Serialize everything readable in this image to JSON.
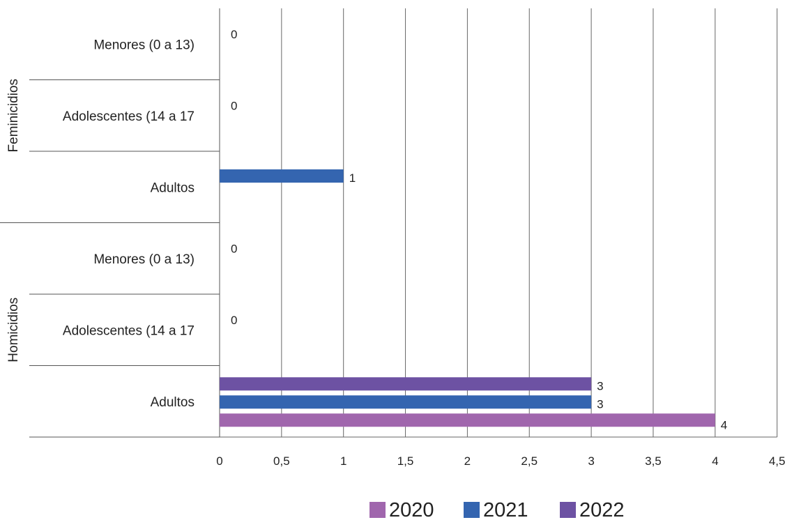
{
  "chart_data": {
    "type": "bar",
    "orientation": "horizontal",
    "groups": [
      {
        "label": "Feminicidios",
        "categories": [
          "Menores  (0 a 13)",
          "Adolescentes  (14 a 17",
          "Adultos"
        ]
      },
      {
        "label": "Homicidios",
        "categories": [
          "Menores  (0 a 13)",
          "Adolescentes  (14 a 17",
          "Adultos"
        ]
      }
    ],
    "series": [
      {
        "name": "2020",
        "color": "#a066ad",
        "values": [
          null,
          null,
          null,
          null,
          null,
          4
        ]
      },
      {
        "name": "2021",
        "color": "#3465b0",
        "values": [
          0,
          0,
          1,
          0,
          0,
          3
        ]
      },
      {
        "name": "2022",
        "color": "#6d52a3",
        "values": [
          null,
          null,
          null,
          null,
          null,
          3
        ]
      }
    ],
    "x_ticks": [
      "0",
      "0,5",
      "1",
      "1,5",
      "2",
      "2,5",
      "3",
      "3,5",
      "4",
      "4,5"
    ],
    "xlim": [
      0,
      4.5
    ],
    "grid": true,
    "legend_position": "bottom-center"
  }
}
